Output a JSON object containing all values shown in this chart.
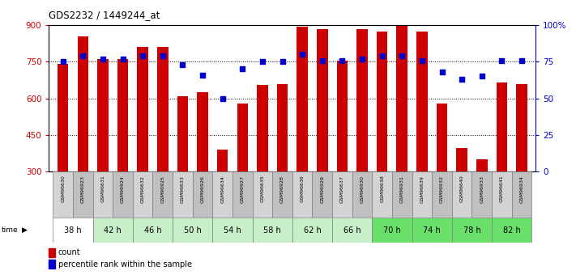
{
  "title": "GDS2232 / 1449244_at",
  "samples": [
    "GSM96630",
    "GSM96923",
    "GSM96631",
    "GSM96924",
    "GSM96632",
    "GSM96925",
    "GSM96633",
    "GSM96926",
    "GSM96634",
    "GSM96927",
    "GSM96635",
    "GSM96928",
    "GSM96636",
    "GSM96929",
    "GSM96637",
    "GSM96930",
    "GSM96638",
    "GSM96931",
    "GSM96639",
    "GSM96932",
    "GSM96640",
    "GSM96933",
    "GSM96641",
    "GSM96934"
  ],
  "counts": [
    740,
    855,
    760,
    762,
    810,
    810,
    610,
    625,
    390,
    578,
    655,
    660,
    893,
    885,
    755,
    885,
    875,
    955,
    875,
    580,
    398,
    350,
    665,
    660
  ],
  "percentiles": [
    75,
    79,
    77,
    77,
    79,
    79,
    73,
    66,
    50,
    70,
    75,
    75,
    80,
    76,
    76,
    77,
    79,
    79,
    76,
    68,
    63,
    65,
    76,
    76
  ],
  "time_labels": [
    "38 h",
    "42 h",
    "46 h",
    "50 h",
    "54 h",
    "58 h",
    "62 h",
    "66 h",
    "70 h",
    "74 h",
    "78 h",
    "82 h"
  ],
  "time_bg_colors": [
    "#ffffff",
    "#c8f0c8",
    "#c8f0c8",
    "#c8f0c8",
    "#c8f0c8",
    "#c8f0c8",
    "#c8f0c8",
    "#c8f0c8",
    "#6ae06a",
    "#6ae06a",
    "#6ae06a",
    "#6ae06a"
  ],
  "bar_color": "#cc0000",
  "dot_color": "#0000cc",
  "bg_color": "#ffffff",
  "ylim_left": [
    300,
    900
  ],
  "ylim_right": [
    0,
    100
  ],
  "left_yticks": [
    300,
    450,
    600,
    750,
    900
  ],
  "right_yticks": [
    0,
    25,
    50,
    75,
    100
  ],
  "sample_even_color": "#d3d3d3",
  "sample_odd_color": "#c0c0c0"
}
